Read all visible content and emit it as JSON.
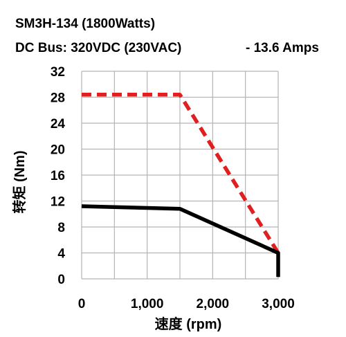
{
  "header": {
    "line1": "SM3H-134 (1800Watts)",
    "line2_left": "DC Bus: 320VDC (230VAC)",
    "line2_right": "-   13.6 Amps"
  },
  "chart_data": {
    "type": "line",
    "xlabel": "速度 (rpm)",
    "ylabel": "转矩 (Nm)",
    "xlim": [
      0,
      3000
    ],
    "ylim": [
      0,
      32
    ],
    "x_ticks": [
      0,
      1000,
      2000,
      3000
    ],
    "x_tick_labels": [
      "0",
      "1,000",
      "2,000",
      "3,000"
    ],
    "y_ticks": [
      0,
      4,
      8,
      12,
      16,
      20,
      24,
      28,
      32
    ],
    "y_tick_labels": [
      "0",
      "4",
      "8",
      "12",
      "16",
      "20",
      "24",
      "28",
      "32"
    ],
    "grid": true,
    "series": [
      {
        "style": "dashed",
        "color": "#e02020",
        "x": [
          0,
          1500,
          3000
        ],
        "y": [
          28.4,
          28.4,
          4
        ]
      },
      {
        "style": "solid",
        "color": "#000000",
        "x": [
          0,
          1500,
          3000,
          3000
        ],
        "y": [
          11.2,
          10.8,
          4,
          0.3
        ]
      }
    ]
  }
}
